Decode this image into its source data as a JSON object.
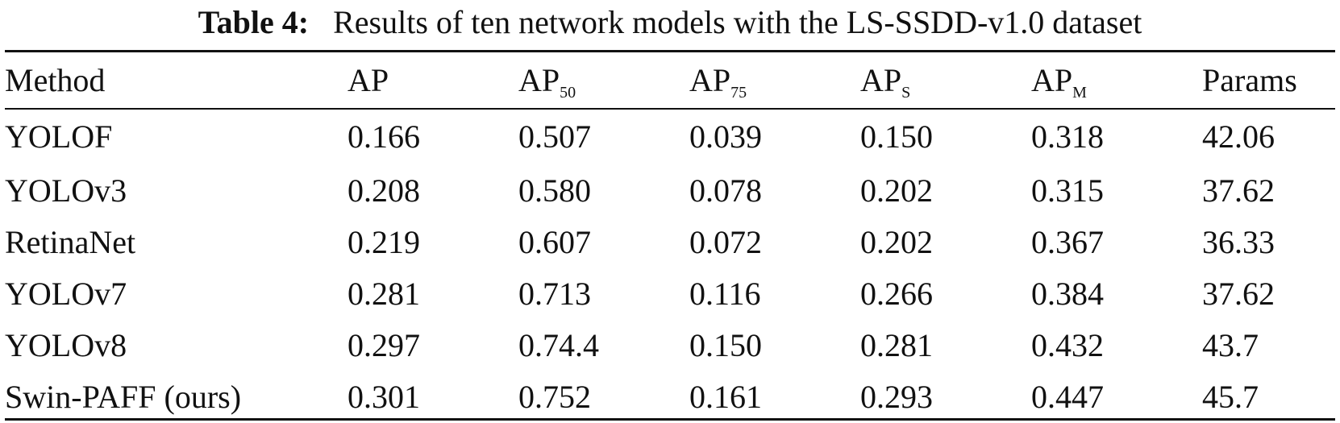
{
  "caption": {
    "label": "Table 4:",
    "text": "Results of ten network models with the LS-SSDD-v1.0 dataset"
  },
  "columns": [
    {
      "main": "Method",
      "sub": ""
    },
    {
      "main": "AP",
      "sub": ""
    },
    {
      "main": "AP",
      "sub": "50"
    },
    {
      "main": "AP",
      "sub": "75"
    },
    {
      "main": "AP",
      "sub": "S"
    },
    {
      "main": "AP",
      "sub": "M"
    },
    {
      "main": "Params",
      "sub": ""
    }
  ],
  "rows": [
    [
      "YOLOF",
      "0.166",
      "0.507",
      "0.039",
      "0.150",
      "0.318",
      "42.06"
    ],
    [
      "YOLOv3",
      "0.208",
      "0.580",
      "0.078",
      "0.202",
      "0.315",
      "37.62"
    ],
    [
      "RetinaNet",
      "0.219",
      "0.607",
      "0.072",
      "0.202",
      "0.367",
      "36.33"
    ],
    [
      "YOLOv7",
      "0.281",
      "0.713",
      "0.116",
      "0.266",
      "0.384",
      "37.62"
    ],
    [
      "YOLOv8",
      "0.297",
      "0.74.4",
      "0.150",
      "0.281",
      "0.432",
      "43.7"
    ],
    [
      "Swin-PAFF (ours)",
      "0.301",
      "0.752",
      "0.161",
      "0.293",
      "0.447",
      "45.7"
    ]
  ]
}
